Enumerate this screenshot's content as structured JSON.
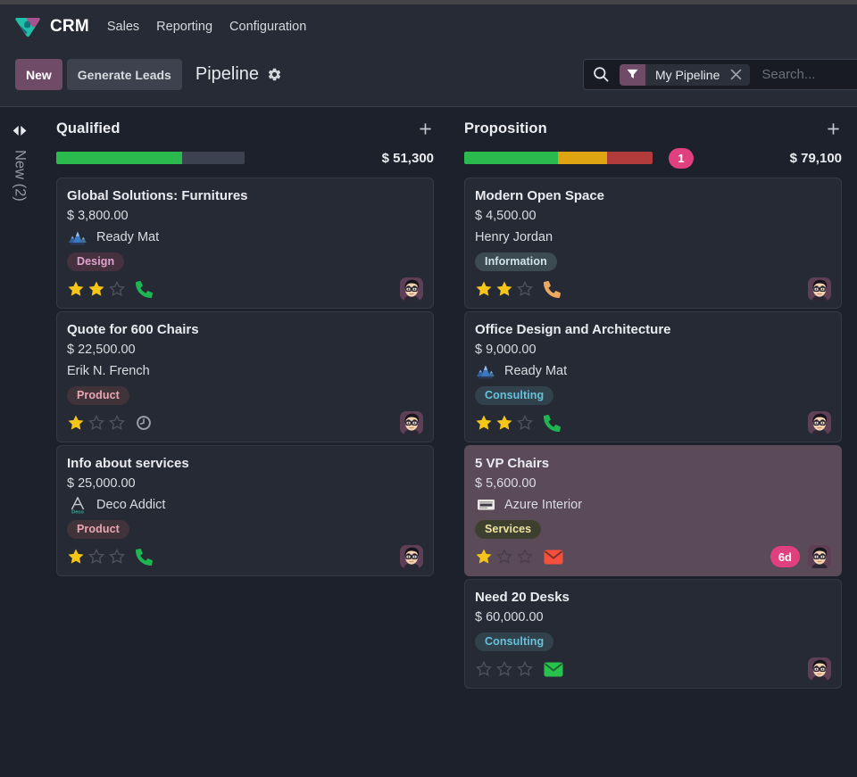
{
  "app": {
    "name": "CRM",
    "menus": [
      "Sales",
      "Reporting",
      "Configuration"
    ]
  },
  "control": {
    "new_label": "New",
    "generate_label": "Generate Leads",
    "title": "Pipeline"
  },
  "search": {
    "facet": "My Pipeline",
    "placeholder": "Search..."
  },
  "folded_column": {
    "label": "New (2)"
  },
  "colors": {
    "brand_purple": "#6f4b67",
    "progress_green": "#2aba4e",
    "progress_yellow": "#dfa411",
    "progress_red": "#b23c3c",
    "progress_muted": "#3c4250",
    "pink_badge": "#e0417e",
    "star_gold": "#f5c518"
  },
  "columns": [
    {
      "title": "Qualified",
      "amount": "$ 51,300",
      "badge": "",
      "progress": [
        {
          "status": "planned",
          "color": "#2aba4e",
          "pct": 66.8
        },
        {
          "status": "none",
          "color": "#3c4250",
          "pct": 33.2
        }
      ],
      "cards": [
        {
          "title": "Global Solutions: Furnitures",
          "amount": "$ 3,800.00",
          "partner": "Ready Mat",
          "tags": [
            {
              "label": "Design",
              "bg": "#46313f",
              "fg": "#dfa4d0"
            }
          ],
          "stars": 2,
          "activity": {
            "icon": "phone",
            "color": "#1fb551"
          }
        },
        {
          "title": "Quote for 600 Chairs",
          "amount": "$ 22,500.00",
          "partner": "Erik N. French",
          "tags": [
            {
              "label": "Product",
              "bg": "#41333a",
              "fg": "#eba6b4"
            }
          ],
          "stars": 1,
          "activity": {
            "icon": "clock",
            "color": "#99a0ab"
          }
        },
        {
          "title": "Info about services",
          "amount": "$ 25,000.00",
          "partner": "Deco Addict",
          "tags": [
            {
              "label": "Product",
              "bg": "#41333a",
              "fg": "#eba6b4"
            }
          ],
          "stars": 1,
          "activity": {
            "icon": "phone",
            "color": "#1fb551"
          }
        }
      ]
    },
    {
      "title": "Proposition",
      "amount": "$ 79,100",
      "badge": "1",
      "progress": [
        {
          "status": "planned",
          "color": "#2aba4e",
          "pct": 49.8
        },
        {
          "status": "today",
          "color": "#dfa411",
          "pct": 26.0
        },
        {
          "status": "overdue",
          "color": "#b23c3c",
          "pct": 24.2
        }
      ],
      "cards": [
        {
          "title": "Modern Open Space",
          "amount": "$ 4,500.00",
          "partner": "Henry Jordan",
          "tags": [
            {
              "label": "Information",
              "bg": "#3c4b52",
              "fg": "#cfe3e8"
            }
          ],
          "stars": 2,
          "activity": {
            "icon": "phone",
            "color": "#eda860"
          }
        },
        {
          "title": "Office Design and Architecture",
          "amount": "$ 9,000.00",
          "partner": "Ready Mat",
          "tags": [
            {
              "label": "Consulting",
              "bg": "#31424d",
              "fg": "#66c2dc"
            }
          ],
          "stars": 2,
          "activity": {
            "icon": "phone",
            "color": "#1fb551"
          }
        },
        {
          "title": "5 VP Chairs",
          "amount": "$ 5,600.00",
          "partner": "Azure Interior",
          "tags": [
            {
              "label": "Services",
              "bg": "#3d402f",
              "fg": "#eee3a3"
            }
          ],
          "stars": 1,
          "activity": {
            "icon": "envelope",
            "color": "#f4503c"
          },
          "due_badge": "6d"
        },
        {
          "title": "Need 20 Desks",
          "amount": "$ 60,000.00",
          "partner": "",
          "tags": [
            {
              "label": "Consulting",
              "bg": "#31424d",
              "fg": "#66c2dc"
            }
          ],
          "stars": 0,
          "activity": {
            "icon": "envelope",
            "color": "#28c34c"
          }
        }
      ]
    }
  ]
}
